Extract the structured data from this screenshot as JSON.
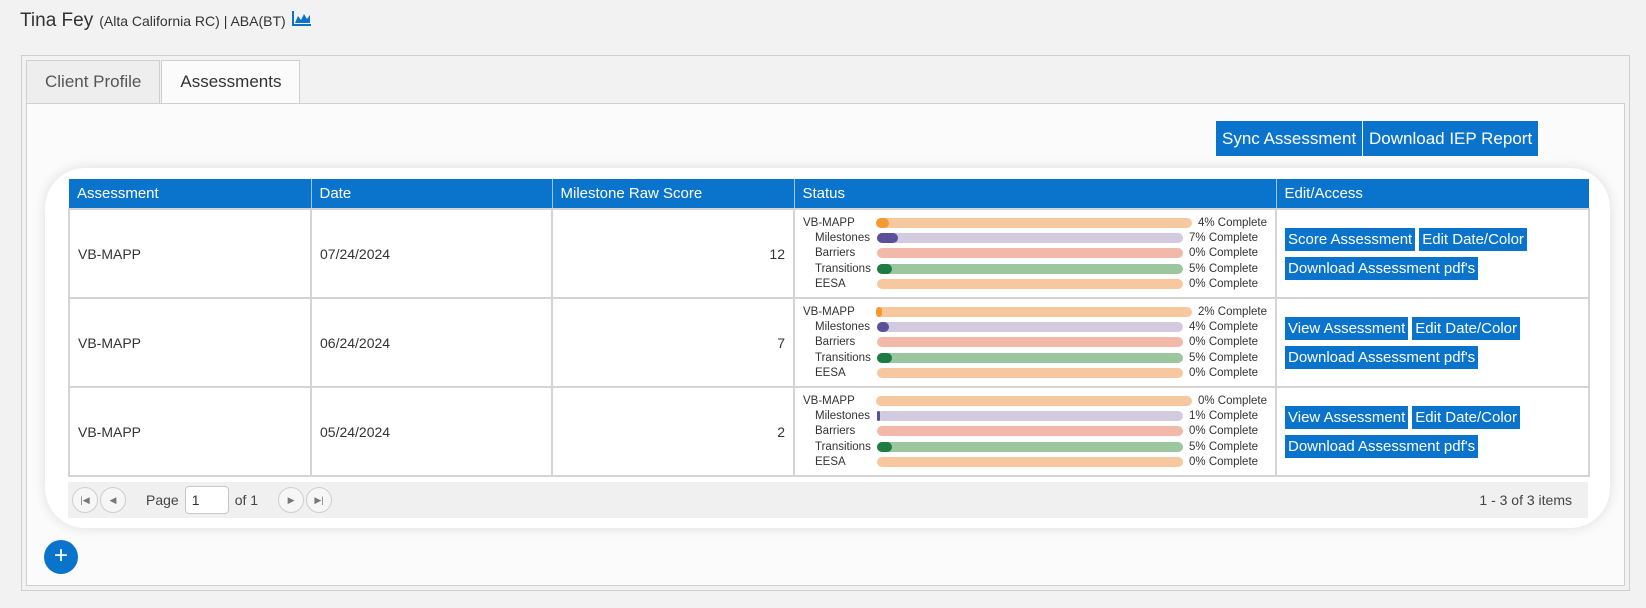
{
  "header": {
    "client_name": "Tina Fey",
    "client_meta": "(Alta California RC) | ABA(BT)",
    "chart_icon": "area-chart-icon"
  },
  "tabs": [
    {
      "label": "Client Profile",
      "active": false
    },
    {
      "label": "Assessments",
      "active": true
    }
  ],
  "toolbar": {
    "sync_label": "Sync Assessment",
    "download_iep_label": "Download IEP Report"
  },
  "grid": {
    "columns": [
      "Assessment",
      "Date",
      "Milestone Raw Score",
      "Status",
      "Edit/Access"
    ],
    "rows": [
      {
        "assessment": "VB-MAPP",
        "date": "07/24/2024",
        "score": "12",
        "status": [
          {
            "label": "VB-MAPP",
            "pct": 4,
            "text": "4% Complete"
          },
          {
            "label": "Milestones",
            "pct": 7,
            "text": "7% Complete"
          },
          {
            "label": "Barriers",
            "pct": 0,
            "text": "0% Complete"
          },
          {
            "label": "Transitions",
            "pct": 5,
            "text": "5% Complete"
          },
          {
            "label": "EESA",
            "pct": 0,
            "text": "0% Complete"
          }
        ],
        "primary_action": "Score Assessment",
        "edit_action": "Edit Date/Color",
        "download_action": "Download Assessment pdf's"
      },
      {
        "assessment": "VB-MAPP",
        "date": "06/24/2024",
        "score": "7",
        "status": [
          {
            "label": "VB-MAPP",
            "pct": 2,
            "text": "2% Complete"
          },
          {
            "label": "Milestones",
            "pct": 4,
            "text": "4% Complete"
          },
          {
            "label": "Barriers",
            "pct": 0,
            "text": "0% Complete"
          },
          {
            "label": "Transitions",
            "pct": 5,
            "text": "5% Complete"
          },
          {
            "label": "EESA",
            "pct": 0,
            "text": "0% Complete"
          }
        ],
        "primary_action": "View Assessment",
        "edit_action": "Edit Date/Color",
        "download_action": "Download Assessment pdf's"
      },
      {
        "assessment": "VB-MAPP",
        "date": "05/24/2024",
        "score": "2",
        "status": [
          {
            "label": "VB-MAPP",
            "pct": 0,
            "text": "0% Complete"
          },
          {
            "label": "Milestones",
            "pct": 1,
            "text": "1% Complete"
          },
          {
            "label": "Barriers",
            "pct": 0,
            "text": "0% Complete"
          },
          {
            "label": "Transitions",
            "pct": 5,
            "text": "5% Complete"
          },
          {
            "label": "EESA",
            "pct": 0,
            "text": "0% Complete"
          }
        ],
        "primary_action": "View Assessment",
        "edit_action": "Edit Date/Color",
        "download_action": "Download Assessment pdf's"
      }
    ]
  },
  "status_colors": {
    "VB-MAPP": {
      "fill": "#f59a33",
      "track": "#f7c7a0"
    },
    "Milestones": {
      "fill": "#5a4f99",
      "track": "#d2cbe0"
    },
    "Barriers": {
      "fill": "#e06a52",
      "track": "#f2b8a8"
    },
    "Transitions": {
      "fill": "#1e7b43",
      "track": "#9cc79e"
    },
    "EESA": {
      "fill": "#f59a33",
      "track": "#f7c7a0"
    }
  },
  "pager": {
    "page_label": "Page",
    "page_value": "1",
    "of_label": "of 1",
    "items_info": "1 - 3 of 3 items",
    "first_icon": "first-page-icon",
    "prev_icon": "prev-page-icon",
    "next_icon": "next-page-icon",
    "last_icon": "last-page-icon"
  },
  "fab": {
    "label": "+"
  },
  "accent": "#0a74cc"
}
